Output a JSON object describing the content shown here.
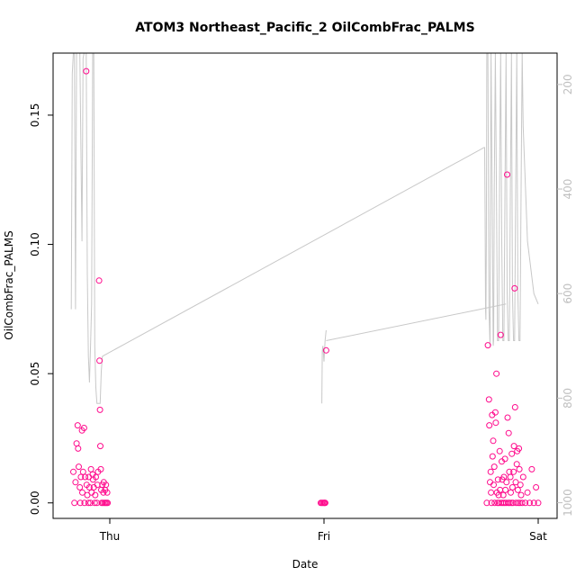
{
  "chart_data": {
    "type": "scatter",
    "title": "ATOM3 Northeast_Pacific_2 OilCombFrac_PALMS",
    "xlabel": "Date",
    "ylabel": "OilCombFrac_PALMS",
    "x_ticks": [
      "Thu",
      "Fri",
      "Sat"
    ],
    "y_ticks": [
      "0.00",
      "0.05",
      "0.10",
      "0.15"
    ],
    "ylim": [
      -0.006,
      0.174
    ],
    "y2_ticks": [
      "200",
      "400",
      "600",
      "800",
      "1000"
    ],
    "y2lim": [
      1030,
      140
    ],
    "x_day_range": [
      -0.2,
      2.0
    ],
    "grid": false,
    "colors": {
      "points": "#ff0a8c",
      "altitude_line": "#c8c8c8",
      "axis": "#000000",
      "secondary_axis": "#bfbfbf"
    },
    "series": [
      {
        "values": [
          [
            -0.17,
            0.012
          ],
          [
            -0.165,
            0.0
          ],
          [
            -0.16,
            0.008
          ],
          [
            -0.155,
            0.023
          ],
          [
            -0.15,
            0.03
          ],
          [
            -0.148,
            0.021
          ],
          [
            -0.145,
            0.014
          ],
          [
            -0.14,
            0.006
          ],
          [
            -0.138,
            0.0
          ],
          [
            -0.135,
            0.01
          ],
          [
            -0.13,
            0.028
          ],
          [
            -0.128,
            0.004
          ],
          [
            -0.125,
            0.012
          ],
          [
            -0.12,
            0.029
          ],
          [
            -0.118,
            0.0
          ],
          [
            -0.115,
            0.01
          ],
          [
            -0.11,
            0.167
          ],
          [
            -0.108,
            0.007
          ],
          [
            -0.105,
            0.003
          ],
          [
            -0.1,
            0.0
          ],
          [
            -0.098,
            0.01
          ],
          [
            -0.095,
            0.006
          ],
          [
            -0.09,
            0.0
          ],
          [
            -0.088,
            0.013
          ],
          [
            -0.085,
            0.004
          ],
          [
            -0.08,
            0.011
          ],
          [
            -0.078,
            0.009
          ],
          [
            -0.075,
            0.006
          ],
          [
            -0.07,
            0.0
          ],
          [
            -0.068,
            0.003
          ],
          [
            -0.065,
            0.01
          ],
          [
            -0.06,
            0.0
          ],
          [
            -0.058,
            0.007
          ],
          [
            -0.055,
            0.012
          ],
          [
            -0.05,
            0.086
          ],
          [
            -0.048,
            0.055
          ],
          [
            -0.046,
            0.036
          ],
          [
            -0.044,
            0.022
          ],
          [
            -0.042,
            0.013
          ],
          [
            -0.04,
            0.005
          ],
          [
            -0.038,
            0.0
          ],
          [
            -0.035,
            0.007
          ],
          [
            -0.032,
            0.0
          ],
          [
            -0.03,
            0.004
          ],
          [
            -0.028,
            0.008
          ],
          [
            -0.025,
            0.0
          ],
          [
            -0.022,
            0.005
          ],
          [
            -0.02,
            0.0
          ],
          [
            -0.018,
            0.007
          ],
          [
            -0.015,
            0.0
          ],
          [
            -0.012,
            0.004
          ],
          [
            -0.01,
            0.0
          ],
          [
            0.985,
            0.0
          ],
          [
            0.99,
            0.0
          ],
          [
            0.995,
            0.0
          ],
          [
            1.0,
            0.0
          ],
          [
            1.003,
            0.0
          ],
          [
            1.006,
            0.0
          ],
          [
            1.01,
            0.059
          ],
          [
            1.76,
            0.0
          ],
          [
            1.765,
            0.061
          ],
          [
            1.77,
            0.04
          ],
          [
            1.772,
            0.03
          ],
          [
            1.775,
            0.008
          ],
          [
            1.778,
            0.012
          ],
          [
            1.78,
            0.004
          ],
          [
            1.782,
            0.0
          ],
          [
            1.785,
            0.034
          ],
          [
            1.787,
            0.018
          ],
          [
            1.79,
            0.024
          ],
          [
            1.792,
            0.007
          ],
          [
            1.795,
            0.014
          ],
          [
            1.797,
            0.0
          ],
          [
            1.8,
            0.035
          ],
          [
            1.802,
            0.031
          ],
          [
            1.805,
            0.05
          ],
          [
            1.807,
            0.004
          ],
          [
            1.81,
            0.0
          ],
          [
            1.812,
            0.009
          ],
          [
            1.815,
            0.003
          ],
          [
            1.817,
            0.0
          ],
          [
            1.82,
            0.02
          ],
          [
            1.822,
            0.005
          ],
          [
            1.825,
            0.065
          ],
          [
            1.827,
            0.0
          ],
          [
            1.83,
            0.016
          ],
          [
            1.832,
            0.009
          ],
          [
            1.835,
            0.0
          ],
          [
            1.837,
            0.003
          ],
          [
            1.84,
            0.01
          ],
          [
            1.842,
            0.0
          ],
          [
            1.845,
            0.017
          ],
          [
            1.847,
            0.005
          ],
          [
            1.85,
            0.0
          ],
          [
            1.852,
            0.008
          ],
          [
            1.855,
            0.127
          ],
          [
            1.857,
            0.033
          ],
          [
            1.86,
            0.0
          ],
          [
            1.862,
            0.027
          ],
          [
            1.865,
            0.012
          ],
          [
            1.867,
            0.0
          ],
          [
            1.87,
            0.01
          ],
          [
            1.872,
            0.004
          ],
          [
            1.875,
            0.0
          ],
          [
            1.877,
            0.019
          ],
          [
            1.88,
            0.006
          ],
          [
            1.882,
            0.0
          ],
          [
            1.885,
            0.012
          ],
          [
            1.887,
            0.022
          ],
          [
            1.89,
            0.083
          ],
          [
            1.892,
            0.037
          ],
          [
            1.895,
            0.008
          ],
          [
            1.897,
            0.0
          ],
          [
            1.9,
            0.015
          ],
          [
            1.902,
            0.02
          ],
          [
            1.905,
            0.005
          ],
          [
            1.907,
            0.0
          ],
          [
            1.91,
            0.021
          ],
          [
            1.912,
            0.013
          ],
          [
            1.915,
            0.0
          ],
          [
            1.917,
            0.007
          ],
          [
            1.92,
            0.003
          ],
          [
            1.925,
            0.0
          ],
          [
            1.93,
            0.01
          ],
          [
            1.94,
            0.0
          ],
          [
            1.95,
            0.004
          ],
          [
            1.96,
            0.0
          ],
          [
            1.97,
            0.013
          ],
          [
            1.98,
            0.0
          ],
          [
            1.99,
            0.006
          ],
          [
            2.0,
            0.0
          ]
        ]
      }
    ],
    "secondary_series": {
      "type": "line",
      "axis": "right",
      "values": [
        [
          -0.18,
          630
        ],
        [
          -0.175,
          180
        ],
        [
          -0.17,
          140
        ],
        [
          -0.165,
          140
        ],
        [
          -0.16,
          630
        ],
        [
          -0.155,
          140
        ],
        [
          -0.15,
          140
        ],
        [
          -0.14,
          140
        ],
        [
          -0.13,
          500
        ],
        [
          -0.125,
          150
        ],
        [
          -0.12,
          140
        ],
        [
          -0.11,
          140
        ],
        [
          -0.105,
          560
        ],
        [
          -0.1,
          720
        ],
        [
          -0.095,
          770
        ],
        [
          -0.09,
          700
        ],
        [
          -0.085,
          620
        ],
        [
          -0.08,
          140
        ],
        [
          -0.075,
          140
        ],
        [
          -0.07,
          700
        ],
        [
          -0.065,
          780
        ],
        [
          -0.06,
          810
        ],
        [
          -0.055,
          810
        ],
        [
          -0.05,
          810
        ],
        [
          -0.045,
          810
        ],
        [
          -0.04,
          750
        ],
        [
          -0.035,
          720
        ],
        [
          1.75,
          320
        ],
        [
          1.752,
          450
        ],
        [
          1.754,
          630
        ],
        [
          1.756,
          650
        ],
        [
          1.758,
          500
        ],
        [
          1.76,
          140
        ],
        [
          1.765,
          140
        ],
        [
          1.77,
          630
        ],
        [
          1.775,
          700
        ],
        [
          1.778,
          300
        ],
        [
          1.78,
          140
        ],
        [
          1.785,
          400
        ],
        [
          1.79,
          700
        ],
        [
          1.792,
          690
        ],
        [
          1.795,
          400
        ],
        [
          1.8,
          140
        ],
        [
          1.805,
          400
        ],
        [
          1.81,
          690
        ],
        [
          1.815,
          690
        ],
        [
          1.82,
          350
        ],
        [
          1.825,
          140
        ],
        [
          1.83,
          500
        ],
        [
          1.835,
          690
        ],
        [
          1.84,
          690
        ],
        [
          1.845,
          400
        ],
        [
          1.85,
          140
        ],
        [
          1.855,
          600
        ],
        [
          1.86,
          690
        ],
        [
          1.865,
          690
        ],
        [
          1.87,
          400
        ],
        [
          1.875,
          140
        ],
        [
          1.88,
          600
        ],
        [
          1.885,
          690
        ],
        [
          1.89,
          690
        ],
        [
          1.895,
          400
        ],
        [
          1.9,
          140
        ],
        [
          1.905,
          600
        ],
        [
          1.91,
          690
        ],
        [
          1.915,
          690
        ],
        [
          1.92,
          400
        ],
        [
          1.925,
          140
        ],
        [
          1.93,
          280
        ],
        [
          1.95,
          500
        ],
        [
          1.98,
          600
        ],
        [
          2.0,
          620
        ]
      ],
      "segments": [
        [
          [
            -0.035,
            720
          ],
          [
            1.75,
            320
          ]
        ],
        [
          [
            0.99,
            810
          ],
          [
            0.992,
            710
          ],
          [
            0.995,
            700
          ],
          [
            1.0,
            730
          ],
          [
            1.005,
            690
          ],
          [
            1.01,
            670
          ]
        ],
        [
          [
            1.01,
            690
          ],
          [
            1.85,
            620
          ]
        ]
      ]
    }
  }
}
